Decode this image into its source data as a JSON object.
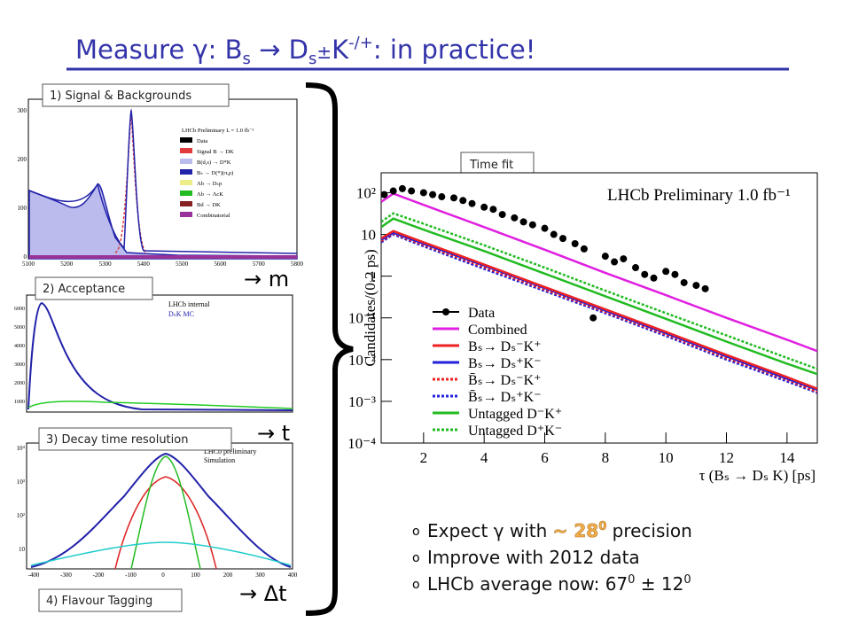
{
  "title": [
    "Measure γ:  B",
    "s",
    " → D",
    "s",
    "±",
    "K",
    "-/+",
    ": in practice!"
  ],
  "panels": [
    {
      "label": "1) Signal & Backgrounds",
      "xticks": [
        5100,
        5200,
        5300,
        5400,
        5500,
        5600,
        5700,
        5800
      ],
      "yticks": [
        0,
        100,
        200,
        300
      ],
      "legend": [
        "LHCb Preliminary L = 1.0 fb⁻¹",
        "Data",
        "Signal B → DK",
        "B(d,s) → D*K",
        "Bₛ → D(*)(π,ρ)",
        "Λb → Dₛp",
        "Λb → ΛcK",
        "Bd → DK",
        "Combinatorial"
      ]
    },
    {
      "label": "2) Acceptance",
      "yticks": [
        1000,
        2000,
        3000,
        4000,
        5000,
        6000
      ],
      "legend": [
        "LHCb internal",
        "DₛK  MC"
      ]
    },
    {
      "label": "3) Decay time resolution",
      "xticks": [
        -400,
        -300,
        -200,
        -100,
        0,
        100,
        200,
        300,
        400
      ],
      "yticks": [
        "10",
        "10²",
        "10³",
        "10⁴"
      ],
      "legend": [
        "LHCb preliminary",
        "Simulation"
      ]
    },
    {
      "label": "4) Flavour Tagging"
    }
  ],
  "arrows": [
    "→ m",
    "→ t",
    "→ Δt"
  ],
  "plot_label": "Time fit",
  "bullets": [
    [
      "Expect γ with ",
      "~ 28",
      "0",
      " precision"
    ],
    [
      "Improve with 2012 data"
    ],
    [
      "LHCb average now: 67",
      "0",
      " ± 12",
      "0"
    ]
  ],
  "chart_data": {
    "type": "line",
    "log_y": true,
    "annotation": "LHCb Preliminary 1.0 fb⁻¹",
    "x_label": "τ (Bₛ → Dₛ K) [ps]",
    "y_label": "Candidates/(0.2 ps)",
    "xlim": [
      0.6,
      15
    ],
    "ylim": [
      0.0001,
      300
    ],
    "xticks": [
      2,
      4,
      6,
      8,
      10,
      12,
      14
    ],
    "yticks": [
      {
        "value": 100,
        "label": "10²"
      },
      10,
      1,
      {
        "value": 0.1,
        "label": "10⁻¹"
      },
      {
        "value": 0.01,
        "label": "10⁻²"
      },
      {
        "value": 0.001,
        "label": "10⁻³"
      },
      {
        "value": 0.0001,
        "label": "10⁻⁴"
      }
    ],
    "series": [
      {
        "name": "Data",
        "color": "#000000",
        "style": "points",
        "x": [
          0.7,
          1.0,
          1.3,
          1.6,
          2.0,
          2.3,
          2.6,
          3.0,
          3.3,
          3.6,
          4.0,
          4.3,
          4.6,
          5.0,
          5.3,
          5.6,
          6.0,
          6.3,
          6.6,
          7.0,
          7.3,
          7.6,
          8.0,
          8.3,
          8.6,
          9.0,
          9.3,
          9.6,
          10.0,
          10.3,
          10.6,
          11.0,
          11.3
        ],
        "values": [
          90,
          110,
          125,
          110,
          100,
          90,
          80,
          75,
          65,
          55,
          45,
          40,
          30,
          25,
          20,
          17,
          14,
          10,
          8,
          6,
          4.5,
          0.1,
          3,
          2.2,
          2.6,
          1.6,
          1.1,
          0.9,
          1.3,
          1.1,
          0.7,
          0.6,
          0.5
        ]
      },
      {
        "name": "Combined",
        "color": "#e020e0",
        "style": "solid",
        "x": [
          0.6,
          1,
          2,
          4,
          6,
          8,
          10,
          12,
          14,
          15
        ],
        "values": [
          60,
          95,
          51,
          15,
          4.3,
          1.2,
          0.35,
          0.1,
          0.03,
          0.016
        ]
      },
      {
        "name": "Bₛ→ Dₛ⁻K⁺",
        "color": "#ee2222",
        "style": "solid",
        "x": [
          0.6,
          1,
          2,
          4,
          6,
          8,
          10,
          12,
          14,
          15
        ],
        "values": [
          8,
          12,
          6.5,
          1.9,
          0.55,
          0.16,
          0.046,
          0.013,
          0.0038,
          0.002
        ]
      },
      {
        "name": "Bₛ→ Dₛ⁺K⁻",
        "color": "#2222dd",
        "style": "solid",
        "x": [
          0.6,
          1,
          2,
          4,
          6,
          8,
          10,
          12,
          14,
          15
        ],
        "values": [
          7.5,
          11,
          6,
          1.8,
          0.52,
          0.15,
          0.043,
          0.012,
          0.0035,
          0.0019
        ]
      },
      {
        "name": "B̄ₛ→ Dₛ⁻K⁺",
        "color": "#ee2222",
        "style": "dotted",
        "x": [
          0.6,
          1,
          2,
          4,
          6,
          8,
          10,
          12,
          14,
          15
        ],
        "values": [
          7,
          10.5,
          5.6,
          1.65,
          0.48,
          0.14,
          0.04,
          0.011,
          0.0033,
          0.0017
        ]
      },
      {
        "name": "B̄ₛ→ Dₛ⁺K⁻",
        "color": "#2222dd",
        "style": "dotted",
        "x": [
          0.6,
          1,
          2,
          4,
          6,
          8,
          10,
          12,
          14,
          15
        ],
        "values": [
          6.5,
          10,
          5.2,
          1.5,
          0.44,
          0.13,
          0.037,
          0.01,
          0.003,
          0.0016
        ]
      },
      {
        "name": "Untagged D⁻K⁺",
        "color": "#22bb22",
        "style": "solid",
        "x": [
          0.6,
          1,
          2,
          4,
          6,
          8,
          10,
          12,
          14,
          15
        ],
        "values": [
          15,
          24,
          13,
          4,
          1.15,
          0.33,
          0.095,
          0.027,
          0.008,
          0.0045
        ]
      },
      {
        "name": "Untagged D⁺K⁻",
        "color": "#22bb22",
        "style": "dotted",
        "x": [
          0.6,
          1,
          2,
          4,
          6,
          8,
          10,
          12,
          14,
          15
        ],
        "values": [
          20,
          32,
          18,
          5.5,
          1.6,
          0.45,
          0.13,
          0.038,
          0.011,
          0.006
        ]
      }
    ]
  }
}
